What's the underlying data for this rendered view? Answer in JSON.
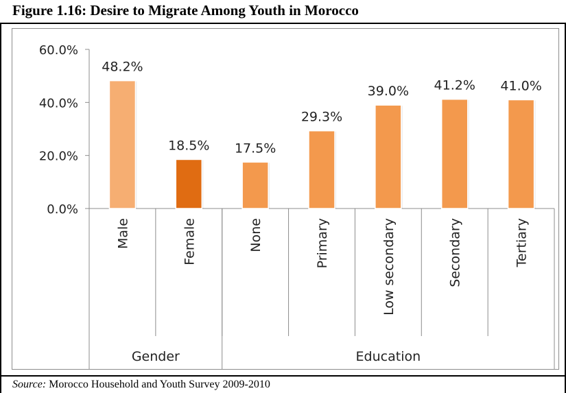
{
  "figure": {
    "title": "Figure 1.16: Desire to Migrate Among Youth in Morocco",
    "source_label": "Source:",
    "source_text": " Morocco Household and Youth Survey 2009-2010"
  },
  "chart_data": {
    "type": "bar",
    "title": "",
    "xlabel": "",
    "ylabel": "",
    "ylim": [
      0,
      60
    ],
    "yticks": [
      "0.0%",
      "20.0%",
      "40.0%",
      "60.0%"
    ],
    "grid": false,
    "categories": [
      "Male",
      "Female",
      "None",
      "Primary",
      "Low secondary",
      "Secondary",
      "Tertiary"
    ],
    "groups": [
      {
        "label": "Gender",
        "categories": [
          "Male",
          "Female"
        ]
      },
      {
        "label": "Education",
        "categories": [
          "None",
          "Primary",
          "Low secondary",
          "Secondary",
          "Tertiary"
        ]
      }
    ],
    "values": [
      48.2,
      18.5,
      17.5,
      29.3,
      39.0,
      41.2,
      41.0
    ],
    "data_labels": [
      "48.2%",
      "18.5%",
      "17.5%",
      "29.3%",
      "39.0%",
      "41.2%",
      "41.0%"
    ],
    "colors": [
      "#f6ae72",
      "#e06c12",
      "#f3994d",
      "#f3994d",
      "#f3994d",
      "#f3994d",
      "#f3994d"
    ]
  }
}
